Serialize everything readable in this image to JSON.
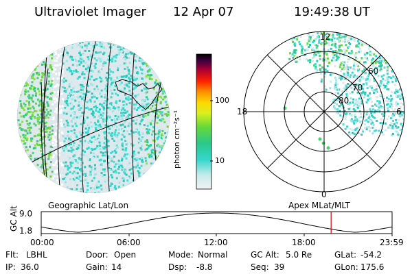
{
  "header": {
    "instrument": "Ultraviolet Imager",
    "date": "12 Apr 07",
    "time": "19:49:38 UT"
  },
  "colorbar": {
    "unit_label": "photon cm⁻²s⁻¹",
    "tick_labels": [
      "100",
      "10"
    ]
  },
  "polar": {
    "mlt_labels": [
      "12",
      "18",
      "6",
      "0"
    ],
    "lat_labels": [
      "60",
      "70",
      "80"
    ]
  },
  "panels": {
    "left_caption": "Geographic Lat/Lon",
    "right_caption": "Apex MLat/MLT"
  },
  "altitude_plot": {
    "ylabel": "GC Alt",
    "ymax": "9.0",
    "ymin": "1.8",
    "xticks": [
      "00:00",
      "06:00",
      "12:00",
      "18:00",
      "23:59"
    ],
    "current_time_hours": 19.83,
    "marker_color": "#d00000"
  },
  "status": {
    "row1": [
      {
        "label": "Flt:",
        "value": "LBHL"
      },
      {
        "label": "Door:",
        "value": "Open"
      },
      {
        "label": "Mode:",
        "value": "Normal"
      },
      {
        "label": "GC Alt:",
        "value": "5.0 Re"
      },
      {
        "label": "GLat:",
        "value": "-54.2"
      }
    ],
    "row2": [
      {
        "label": "IP:",
        "value": "36.0"
      },
      {
        "label": "Gain:",
        "value": "14"
      },
      {
        "label": "Dsp:",
        "value": "-8.8"
      },
      {
        "label": "Seq:",
        "value": "39"
      },
      {
        "label": "GLon:",
        "value": "175.6"
      }
    ]
  }
}
